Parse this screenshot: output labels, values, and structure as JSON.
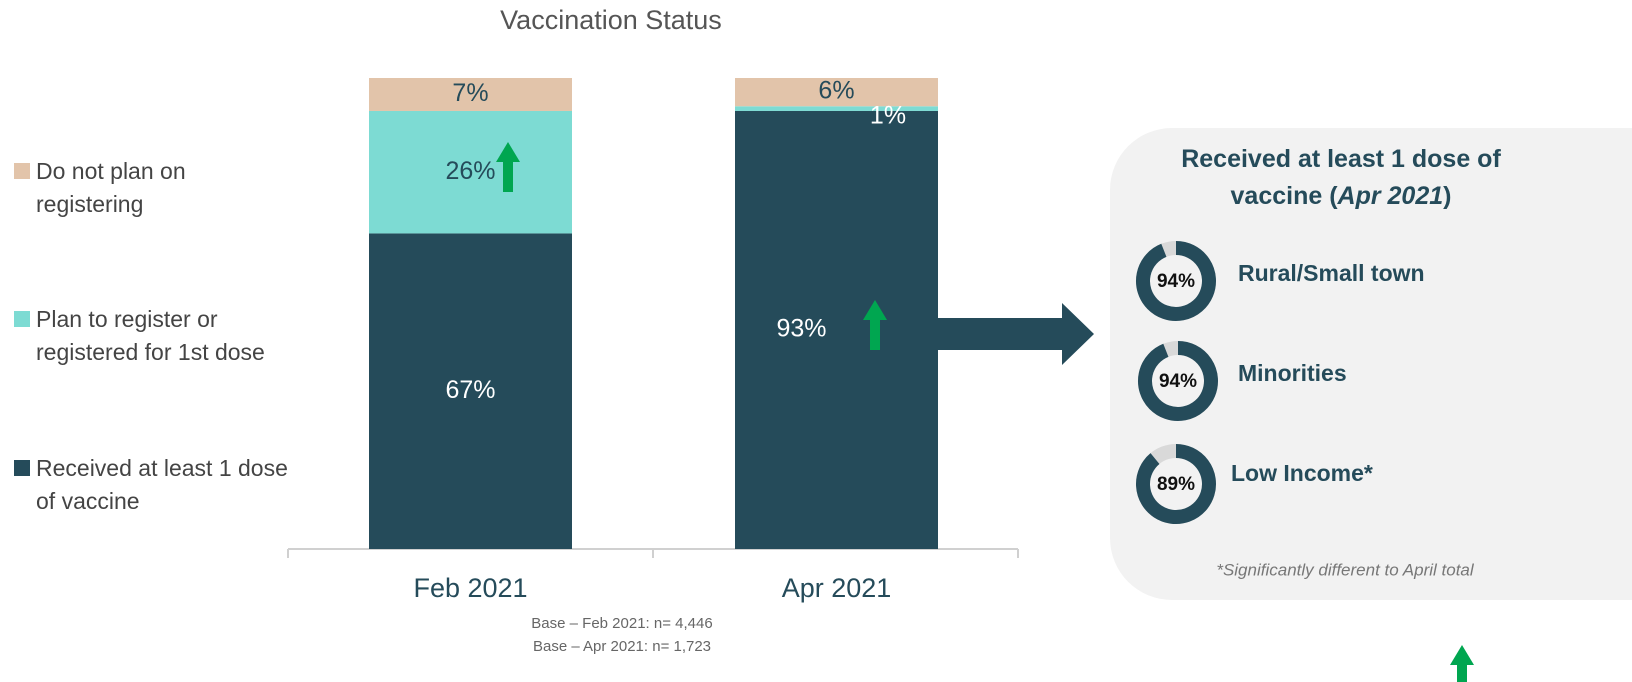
{
  "chart_data": [
    {
      "type": "stacked_bar",
      "title": "Vaccination Status",
      "categories": [
        "Feb 2021",
        "Apr 2021"
      ],
      "series": [
        {
          "name": "Received at least 1 dose of vaccine",
          "color": "#254b5a",
          "values": [
            67,
            93
          ],
          "value_labels": [
            "67%",
            "93%"
          ]
        },
        {
          "name": "Plan to register or registered for 1st dose",
          "color": "#7ddbd3",
          "values": [
            26,
            1
          ],
          "value_labels": [
            "26%",
            "1%"
          ]
        },
        {
          "name": "Do not plan on registering",
          "color": "#e2c4aa",
          "values": [
            7,
            6
          ],
          "value_labels": [
            "7%",
            "6%"
          ]
        }
      ],
      "ylim": [
        0,
        100
      ],
      "notes": [
        "Base – Feb 2021: n= 4,446",
        "Base – Apr 2021: n= 1,723"
      ]
    },
    {
      "type": "donut",
      "title_parts": [
        "Received at least 1 dose of",
        "vaccine ",
        "(",
        "Apr 2021",
        ")"
      ],
      "categories": [
        "Rural/Small town",
        "Minorities",
        "Low Income*"
      ],
      "values": [
        94,
        94,
        89
      ],
      "value_labels": [
        "94%",
        "94%",
        "89%"
      ],
      "color": "#254b5a",
      "footnote": "*Significantly different to April total"
    }
  ]
}
